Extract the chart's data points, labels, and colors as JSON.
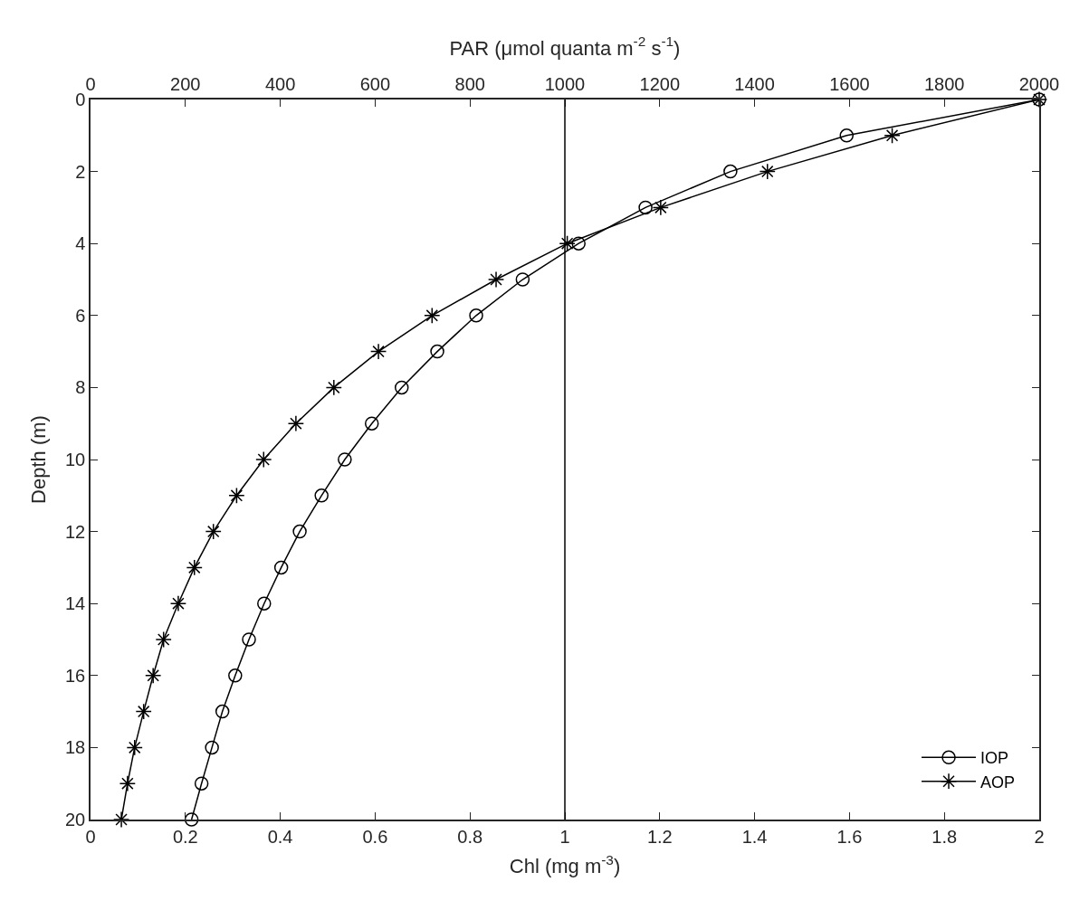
{
  "chart_data": {
    "type": "line",
    "xlabel": "Chl (mg m$^{-3}$)",
    "x2label": "PAR (μmol quanta m$^{-2}$ s$^{-1}$)",
    "ylabel": "Depth (m)",
    "xlim": [
      0,
      2
    ],
    "xticks": [
      0,
      0.2,
      0.4,
      0.6,
      0.8,
      1,
      1.2,
      1.4,
      1.6,
      1.8,
      2
    ],
    "x2lim": [
      0,
      2000
    ],
    "x2ticks": [
      0,
      200,
      400,
      600,
      800,
      1000,
      1200,
      1400,
      1600,
      1800,
      2000
    ],
    "ylim": [
      20,
      0
    ],
    "yticks": [
      0,
      2,
      4,
      6,
      8,
      10,
      12,
      14,
      16,
      18,
      20
    ],
    "series": [
      {
        "name": "IOP",
        "color": "#000000",
        "marker": "circle",
        "axis": "x2",
        "x": [
          2000,
          1594,
          1349,
          1170,
          1029,
          911,
          813,
          731,
          656,
          593,
          536,
          487,
          441,
          402,
          366,
          334,
          305,
          278,
          256,
          234,
          213
        ],
        "values": [
          0,
          1,
          2,
          3,
          4,
          5,
          6,
          7,
          8,
          9,
          10,
          11,
          12,
          13,
          14,
          15,
          16,
          17,
          18,
          19,
          20
        ]
      },
      {
        "name": "AOP",
        "color": "#000000",
        "marker": "cross",
        "axis": "x2",
        "x": [
          2000,
          1690,
          1427,
          1202,
          1005,
          855,
          720,
          607,
          513,
          433,
          365,
          308,
          259,
          219,
          185,
          154,
          132,
          112,
          93,
          78,
          65
        ],
        "values": [
          0,
          1,
          2,
          3,
          4,
          5,
          6,
          7,
          8,
          9,
          10,
          11,
          12,
          13,
          14,
          15,
          16,
          17,
          18,
          19,
          20
        ]
      }
    ],
    "ref_lines": [
      {
        "axis": "x",
        "value": 1,
        "color": "#000000",
        "line_style": "solid"
      }
    ],
    "legend": "bottom right"
  }
}
